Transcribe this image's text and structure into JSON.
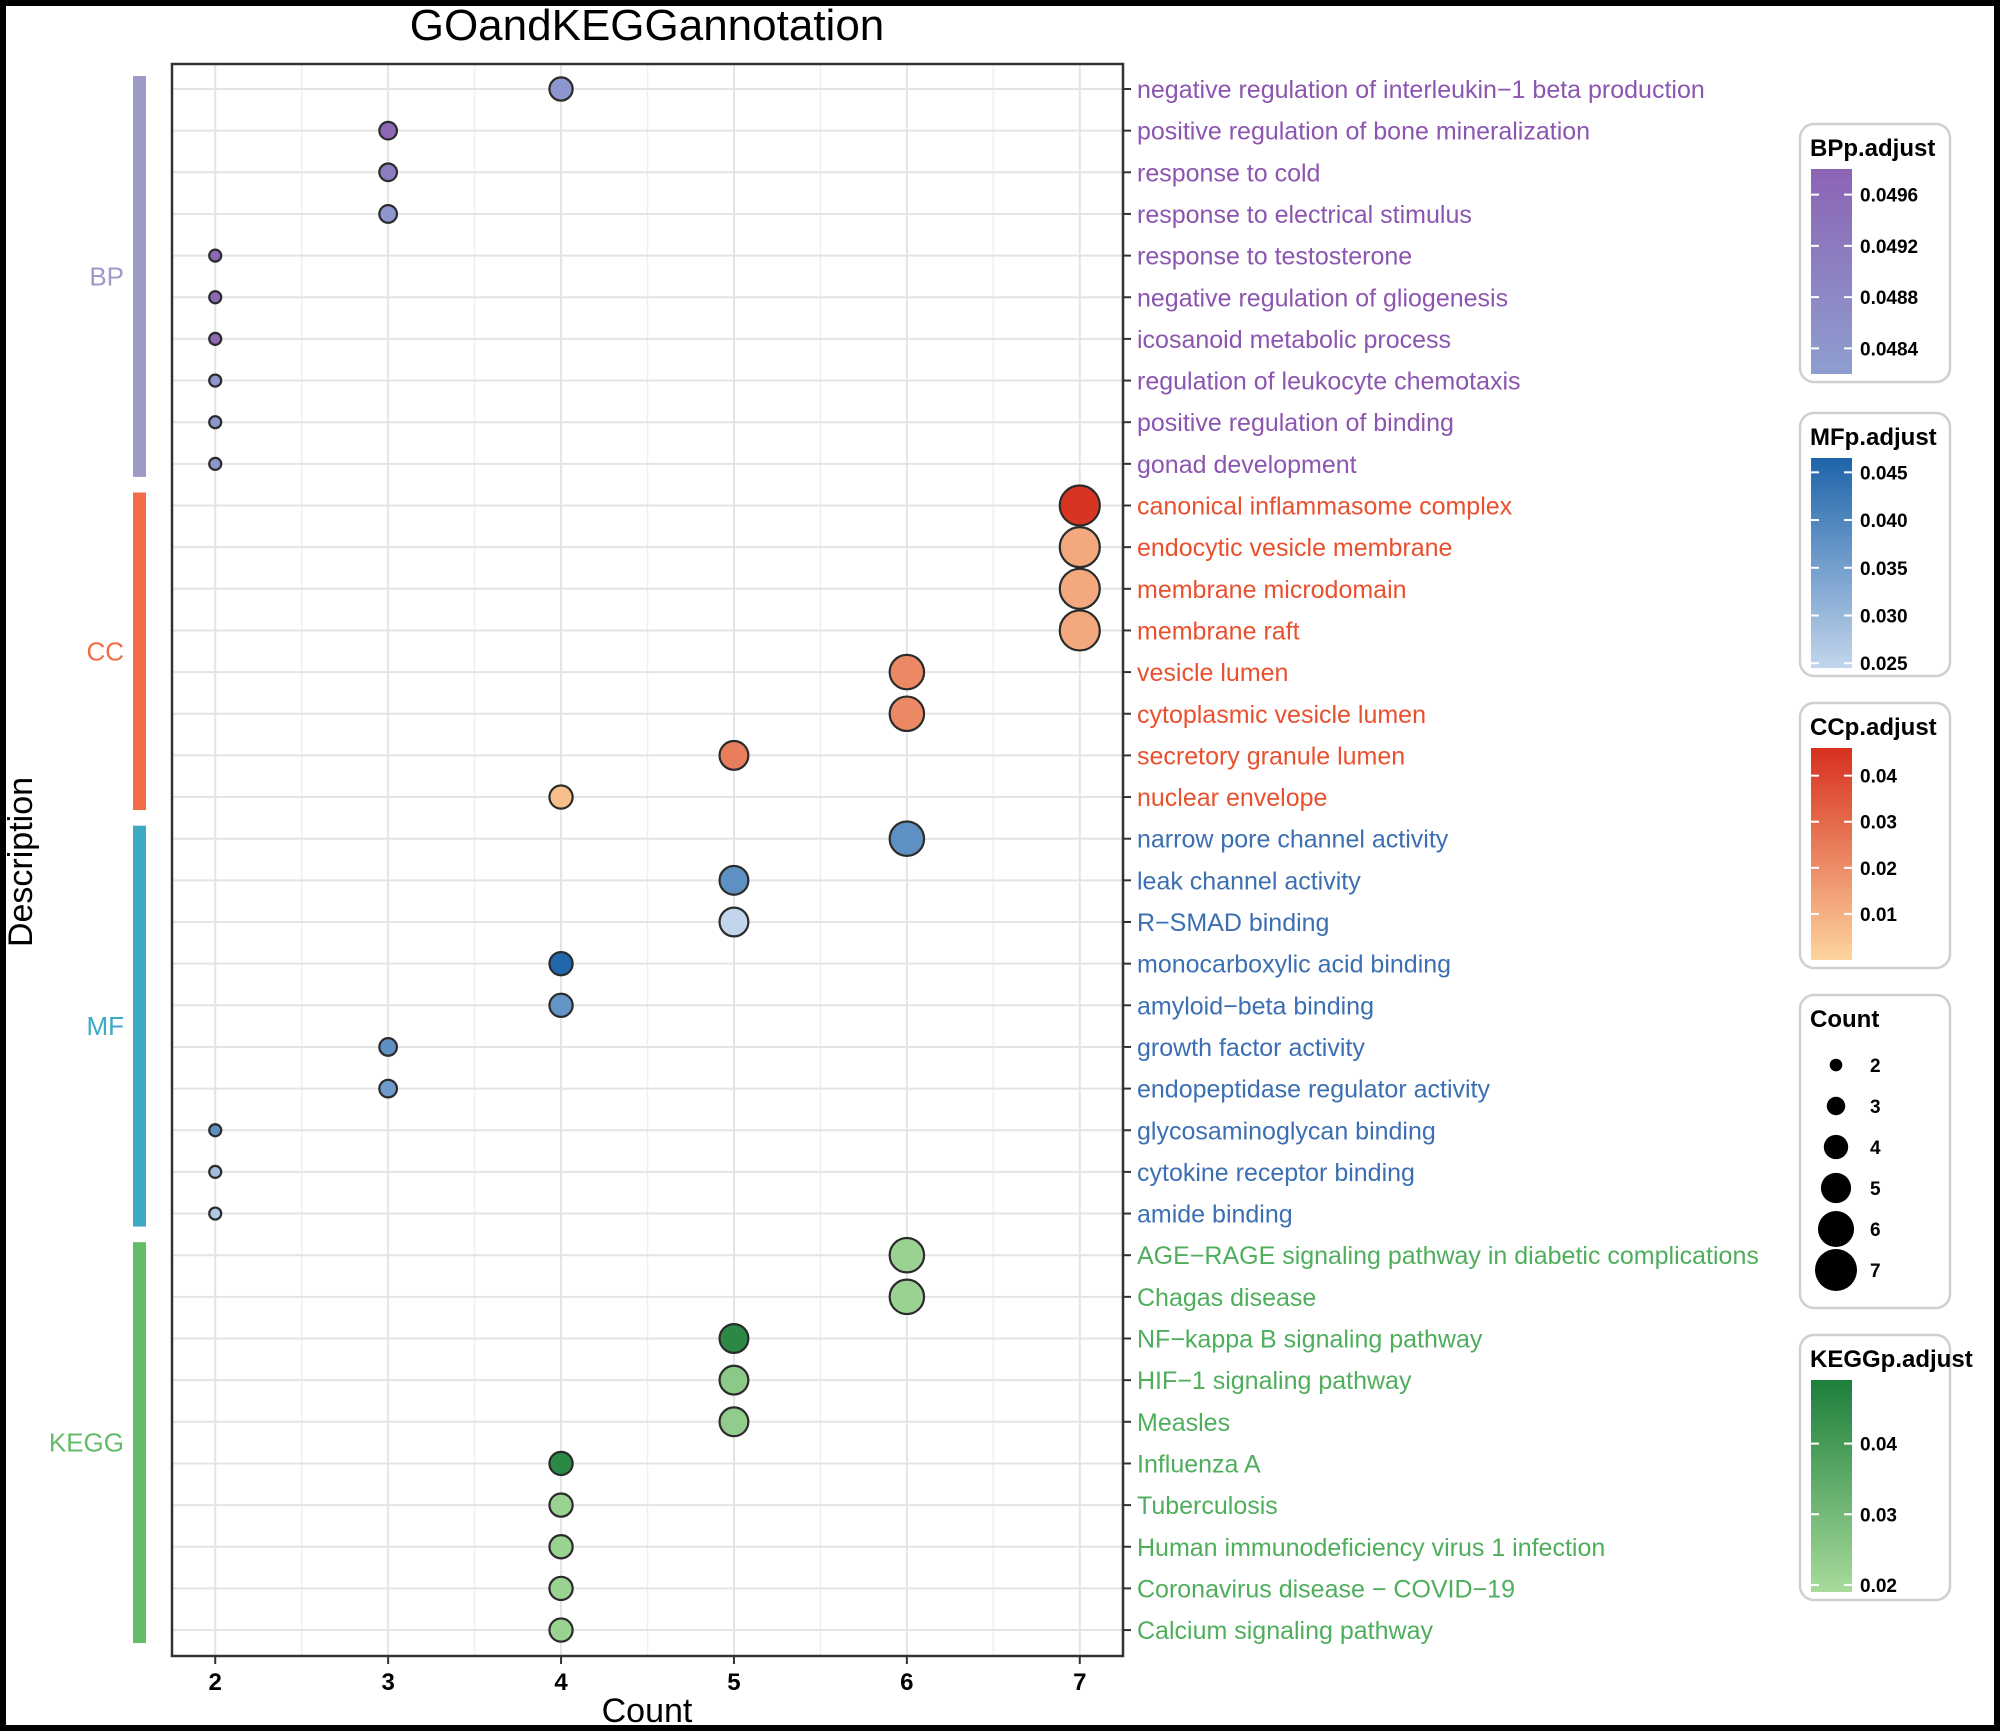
{
  "chart_data": {
    "type": "scatter",
    "title": "GOandKEGGannotation",
    "xlabel": "Count",
    "ylabel": "Description",
    "xlim": [
      1.75,
      7.25
    ],
    "xticks": [
      2,
      3,
      4,
      5,
      6,
      7
    ],
    "grid": true,
    "legend_position": "right",
    "groups": [
      {
        "name": "BP",
        "color": "#9E9AC8",
        "text_color": "#8B55B0"
      },
      {
        "name": "CC",
        "color": "#F26D45",
        "text_color": "#E9502E"
      },
      {
        "name": "MF",
        "color": "#3CAAC4",
        "text_color": "#3C6FB2"
      },
      {
        "name": "KEGG",
        "color": "#63BC67",
        "text_color": "#4FAE5C"
      }
    ],
    "rows": [
      {
        "label": "negative regulation of interleukin−1 beta production",
        "group": "BP",
        "count": 4,
        "p_adjust": 0.0484
      },
      {
        "label": "positive regulation of bone mineralization",
        "group": "BP",
        "count": 3,
        "p_adjust": 0.0497
      },
      {
        "label": "response to cold",
        "group": "BP",
        "count": 3,
        "p_adjust": 0.0491
      },
      {
        "label": "response to electrical stimulus",
        "group": "BP",
        "count": 3,
        "p_adjust": 0.0484
      },
      {
        "label": "response to testosterone",
        "group": "BP",
        "count": 2,
        "p_adjust": 0.0497
      },
      {
        "label": "negative regulation of gliogenesis",
        "group": "BP",
        "count": 2,
        "p_adjust": 0.0497
      },
      {
        "label": "icosanoid metabolic process",
        "group": "BP",
        "count": 2,
        "p_adjust": 0.0497
      },
      {
        "label": "regulation of leukocyte chemotaxis",
        "group": "BP",
        "count": 2,
        "p_adjust": 0.0484
      },
      {
        "label": "positive regulation of binding",
        "group": "BP",
        "count": 2,
        "p_adjust": 0.0484
      },
      {
        "label": "gonad development",
        "group": "BP",
        "count": 2,
        "p_adjust": 0.0484
      },
      {
        "label": "canonical inflammasome complex",
        "group": "CC",
        "count": 7,
        "p_adjust": 0.045
      },
      {
        "label": "endocytic vesicle membrane",
        "group": "CC",
        "count": 7,
        "p_adjust": 0.012
      },
      {
        "label": "membrane microdomain",
        "group": "CC",
        "count": 7,
        "p_adjust": 0.012
      },
      {
        "label": "membrane raft",
        "group": "CC",
        "count": 7,
        "p_adjust": 0.012
      },
      {
        "label": "vesicle lumen",
        "group": "CC",
        "count": 6,
        "p_adjust": 0.021
      },
      {
        "label": "cytoplasmic vesicle lumen",
        "group": "CC",
        "count": 6,
        "p_adjust": 0.021
      },
      {
        "label": "secretory granule lumen",
        "group": "CC",
        "count": 5,
        "p_adjust": 0.024
      },
      {
        "label": "nuclear envelope",
        "group": "CC",
        "count": 4,
        "p_adjust": 0.006
      },
      {
        "label": "narrow pore channel activity",
        "group": "MF",
        "count": 6,
        "p_adjust": 0.038
      },
      {
        "label": "leak channel activity",
        "group": "MF",
        "count": 5,
        "p_adjust": 0.038
      },
      {
        "label": "R−SMAD binding",
        "group": "MF",
        "count": 5,
        "p_adjust": 0.024
      },
      {
        "label": "monocarboxylic acid binding",
        "group": "MF",
        "count": 4,
        "p_adjust": 0.046
      },
      {
        "label": "amyloid−beta binding",
        "group": "MF",
        "count": 4,
        "p_adjust": 0.037
      },
      {
        "label": "growth factor activity",
        "group": "MF",
        "count": 3,
        "p_adjust": 0.038
      },
      {
        "label": "endopeptidase regulator activity",
        "group": "MF",
        "count": 3,
        "p_adjust": 0.036
      },
      {
        "label": "glycosaminoglycan binding",
        "group": "MF",
        "count": 2,
        "p_adjust": 0.038
      },
      {
        "label": "cytokine receptor binding",
        "group": "MF",
        "count": 2,
        "p_adjust": 0.029
      },
      {
        "label": "amide binding",
        "group": "MF",
        "count": 2,
        "p_adjust": 0.027
      },
      {
        "label": "AGE−RAGE signaling pathway in diabetic complications",
        "group": "KEGG",
        "count": 6,
        "p_adjust": 0.022
      },
      {
        "label": "Chagas disease",
        "group": "KEGG",
        "count": 6,
        "p_adjust": 0.022
      },
      {
        "label": "NF−kappa B signaling pathway",
        "group": "KEGG",
        "count": 5,
        "p_adjust": 0.046
      },
      {
        "label": "HIF−1 signaling pathway",
        "group": "KEGG",
        "count": 5,
        "p_adjust": 0.025
      },
      {
        "label": "Measles",
        "group": "KEGG",
        "count": 5,
        "p_adjust": 0.024
      },
      {
        "label": "Influenza A",
        "group": "KEGG",
        "count": 4,
        "p_adjust": 0.046
      },
      {
        "label": "Tuberculosis",
        "group": "KEGG",
        "count": 4,
        "p_adjust": 0.022
      },
      {
        "label": "Human immunodeficiency virus 1 infection",
        "group": "KEGG",
        "count": 4,
        "p_adjust": 0.022
      },
      {
        "label": "Coronavirus disease − COVID−19",
        "group": "KEGG",
        "count": 4,
        "p_adjust": 0.022
      },
      {
        "label": "Calcium signaling pathway",
        "group": "KEGG",
        "count": 4,
        "p_adjust": 0.022
      }
    ],
    "legends": [
      {
        "title": "BPp.adjust",
        "type": "colorbar",
        "group": "BP",
        "low_color": "#8E9ED0",
        "high_color": "#8C64B4",
        "range": [
          0.0482,
          0.0498
        ],
        "ticks": [
          "0.0484",
          "0.0488",
          "0.0492",
          "0.0496"
        ],
        "tick_values": [
          0.0484,
          0.0488,
          0.0492,
          0.0496
        ]
      },
      {
        "title": "MFp.adjust",
        "type": "colorbar",
        "group": "MF",
        "low_color": "#C3D5EC",
        "high_color": "#1E64AA",
        "range": [
          0.0245,
          0.0465
        ],
        "ticks": [
          "0.025",
          "0.030",
          "0.035",
          "0.040",
          "0.045"
        ],
        "tick_values": [
          0.025,
          0.03,
          0.035,
          0.04,
          0.045
        ]
      },
      {
        "title": "CCp.adjust",
        "type": "colorbar",
        "group": "CC",
        "low_color": "#FDD49E",
        "high_color": "#D7301F",
        "range": [
          0.0,
          0.046
        ],
        "ticks": [
          "0.01",
          "0.02",
          "0.03",
          "0.04"
        ],
        "tick_values": [
          0.01,
          0.02,
          0.03,
          0.04
        ]
      },
      {
        "title": "Count",
        "type": "size",
        "values": [
          2,
          3,
          4,
          5,
          6,
          7
        ],
        "labels": [
          "2",
          "3",
          "4",
          "5",
          "6",
          "7"
        ]
      },
      {
        "title": "KEGGp.adjust",
        "type": "colorbar",
        "group": "KEGG",
        "low_color": "#A8DB9C",
        "high_color": "#1D7F3B",
        "range": [
          0.019,
          0.049
        ],
        "ticks": [
          "0.02",
          "0.03",
          "0.04"
        ],
        "tick_values": [
          0.02,
          0.03,
          0.04
        ]
      }
    ]
  }
}
